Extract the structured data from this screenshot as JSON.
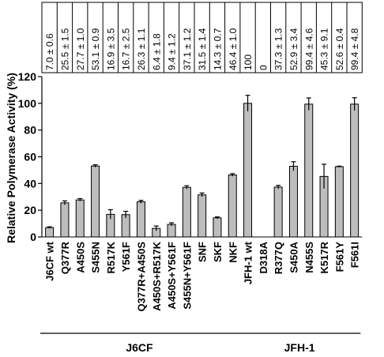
{
  "chart_data": {
    "type": "bar",
    "ylabel": "Relative Polymerase Activity (%)",
    "ylim": [
      0,
      120
    ],
    "yticks": [
      0,
      20,
      40,
      60,
      80,
      100,
      120
    ],
    "grid": false,
    "bar_color": "#bdbdbd",
    "categories": [
      "J6CF wt",
      "Q377R",
      "A450S",
      "S455N",
      "R517K",
      "Y561F",
      "Q377R+A450S",
      "A450S+R517K",
      "A450S+Y561F",
      "S455N+Y561F",
      "SNF",
      "SKF",
      "NKF",
      "JFH-1 wt",
      "D318A",
      "R377Q",
      "S450A",
      "N455S",
      "K517R",
      "F561Y",
      "F561I"
    ],
    "values": [
      7.0,
      25.5,
      27.7,
      53.1,
      16.9,
      16.7,
      26.3,
      6.4,
      9.4,
      37.1,
      31.5,
      14.3,
      46.4,
      100,
      0,
      37.3,
      52.9,
      99.4,
      45.3,
      52.6,
      99.4
    ],
    "errors": [
      0.6,
      1.5,
      1.0,
      0.9,
      3.5,
      2.5,
      1.1,
      1.8,
      1.2,
      1.2,
      1.4,
      0.7,
      1.0,
      6,
      0,
      1.3,
      3.4,
      4.6,
      9.1,
      0.4,
      4.8
    ],
    "table_values": [
      "7.0 ± 0.6",
      "25.5 ± 1.5",
      "27.7 ± 1.0",
      "53.1 ± 0.9",
      "16.9 ± 3.5",
      "16.7 ± 2.5",
      "26.3 ± 1.1",
      "6.4 ± 1.8",
      "9.4 ± 1.2",
      "37.1 ± 1.2",
      "31.5 ± 1.4",
      "14.3 ± 0.7",
      "46.4 ± 1.0",
      "100",
      "0",
      "37.3 ± 1.3",
      "52.9 ± 3.4",
      "99.4 ± 4.6",
      "45.3 ± 9.1",
      "52.6 ± 0.4",
      "99.4 ± 4.8"
    ],
    "groups": [
      {
        "label": "J6CF",
        "from": 0,
        "to": 12
      },
      {
        "label": "JFH-1",
        "from": 13,
        "to": 20
      }
    ]
  }
}
